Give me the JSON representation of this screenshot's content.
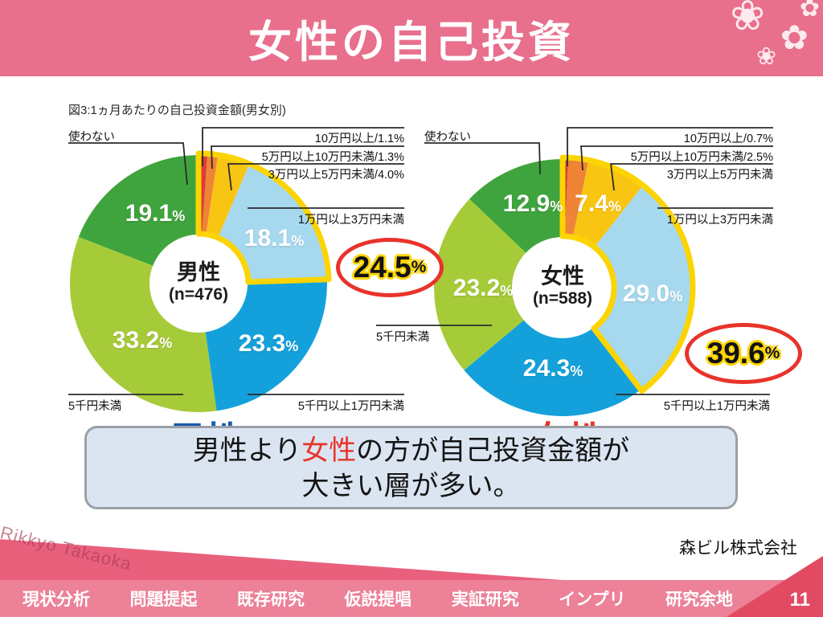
{
  "header": {
    "title": "女性の自己投資"
  },
  "decoration": {
    "flowers": [
      "❀",
      "✿",
      "❀",
      "✿"
    ]
  },
  "figure_title": "図3:1ヵ月あたりの自己投資金額(男女別)",
  "percent_unit": "%",
  "chart_data": [
    {
      "type": "donut",
      "group_label": "男性",
      "n_label": "(n=476)",
      "slices": [
        {
          "label": "10万円以上",
          "value": 1.1,
          "color": "#dd3c35"
        },
        {
          "label": "5万円以上10万円未満",
          "value": 1.3,
          "color": "#ef8336"
        },
        {
          "label": "3万円以上5万円未満",
          "value": 4.0,
          "color": "#f9c513"
        },
        {
          "label": "1万円以上3万円未満",
          "value": 18.1,
          "color": "#a6d9ee"
        },
        {
          "label": "5千円以上1万円未満",
          "value": 23.3,
          "color": "#14a1db"
        },
        {
          "label": "5千円未満",
          "value": 33.2,
          "color": "#a6cb39"
        },
        {
          "label": "使わない",
          "value": 19.1,
          "color": "#3fa43d"
        }
      ],
      "leader_labels": {
        "tsukawanai": "使わない",
        "row1": "10万円以上/1.1%",
        "row2": "5万円以上10万円未満/1.3%",
        "row3": "3万円以上5万円未満/4.0%",
        "man1_3": "1万円以上3万円未満",
        "under5k": "5千円未満",
        "k5_10k": "5千円以上1万円未満"
      },
      "inner_labels": [
        "19.1",
        "18.1",
        "23.3",
        "33.2"
      ],
      "highlight": {
        "slice_count": 4,
        "total": "24.5",
        "ring_color": "#fcd403",
        "oval_border": "#e8332b"
      },
      "footer_label": "男性"
    },
    {
      "type": "donut",
      "group_label": "女性",
      "n_label": "(n=588)",
      "slices": [
        {
          "label": "10万円以上",
          "value": 0.7,
          "color": "#dd3c35"
        },
        {
          "label": "5万円以上10万円未満",
          "value": 2.5,
          "color": "#ef8336"
        },
        {
          "label": "3万円以上5万円未満",
          "value": 7.4,
          "color": "#f9c513"
        },
        {
          "label": "1万円以上3万円未満",
          "value": 29.0,
          "color": "#a6d9ee"
        },
        {
          "label": "5千円以上1万円未満",
          "value": 24.3,
          "color": "#14a1db"
        },
        {
          "label": "5千円未満",
          "value": 23.2,
          "color": "#a6cb39"
        },
        {
          "label": "使わない",
          "value": 12.9,
          "color": "#3fa43d"
        }
      ],
      "leader_labels": {
        "tsukawanai": "使わない",
        "row1": "10万円以上/0.7%",
        "row2": "5万円以上10万円未満/2.5%",
        "row3": "3万円以上5万円未満",
        "man1_3": "1万円以上3万円未満",
        "under5k": "5千円未満",
        "k5_10k": "5千円以上1万円未満"
      },
      "inner_labels": [
        "12.9",
        "7.4",
        "29.0",
        "24.3",
        "23.2"
      ],
      "highlight": {
        "slice_count": 4,
        "total": "39.6",
        "ring_color": "#fcd403",
        "oval_border": "#e8332b"
      },
      "footer_label": "女性"
    }
  ],
  "summary": {
    "line1_pre": "男性より",
    "line1_em": "女性",
    "line1_post": "の方が自己投資金額が",
    "line2": "大きい層が多い。"
  },
  "credit": "森ビル株式会社",
  "watermark": "Rikkyo Takaoka",
  "nav": {
    "items": [
      "現状分析",
      "問題提起",
      "既存研究",
      "仮説提唱",
      "実証研究",
      "インプリ",
      "研究余地"
    ],
    "page": "11"
  }
}
